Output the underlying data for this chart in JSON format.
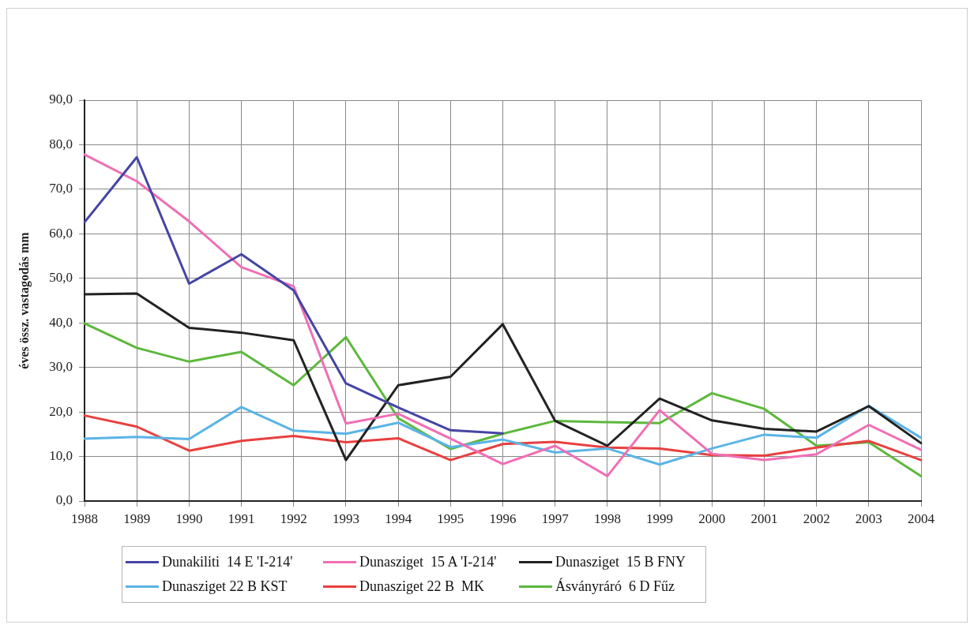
{
  "chart_data": {
    "type": "line",
    "ylabel": "éves össz. vastagodás mm",
    "categories": [
      "1988",
      "1989",
      "1990",
      "1991",
      "1992",
      "1993",
      "1994",
      "1995",
      "1996",
      "1997",
      "1998",
      "1999",
      "2000",
      "2001",
      "2002",
      "2003",
      "2004"
    ],
    "series": [
      {
        "name": "Dunakiliti  14 E 'I-214'",
        "color": "#4545a5",
        "values": [
          62.6,
          77.2,
          48.8,
          55.4,
          47.3,
          26.4,
          21.0,
          15.9,
          15.2,
          null,
          null,
          null,
          null,
          null,
          null,
          null,
          null
        ]
      },
      {
        "name": "Dunasziget  15 A 'I-214'",
        "color": "#f06eb4",
        "values": [
          77.8,
          71.8,
          62.8,
          52.5,
          48.2,
          17.4,
          19.6,
          14.0,
          8.3,
          12.4,
          5.6,
          20.4,
          10.6,
          9.2,
          10.5,
          17.1,
          11.5
        ]
      },
      {
        "name": "Dunasziget  15 B FNY",
        "color": "#222222",
        "values": [
          46.4,
          46.6,
          38.9,
          37.8,
          36.1,
          9.2,
          26.0,
          27.9,
          39.7,
          18.0,
          12.4,
          23.0,
          18.1,
          16.2,
          15.6,
          21.3,
          13.0
        ]
      },
      {
        "name": "Dunasziget 22 B KST",
        "color": "#5ab4e6",
        "values": [
          14.0,
          14.4,
          13.9,
          21.1,
          15.8,
          15.1,
          17.6,
          12.1,
          13.8,
          10.9,
          11.8,
          8.2,
          11.8,
          14.9,
          14.2,
          21.4,
          14.2
        ]
      },
      {
        "name": "Dunasziget 22 B  MK",
        "color": "#e8403f",
        "values": [
          19.2,
          16.7,
          11.3,
          13.5,
          14.6,
          13.2,
          14.1,
          9.2,
          12.8,
          13.3,
          12.0,
          11.8,
          10.3,
          10.2,
          12.0,
          13.5,
          9.2
        ]
      },
      {
        "name": "Ásványráró  6 D Fűz",
        "color": "#5cb83c",
        "values": [
          39.9,
          34.4,
          31.3,
          33.5,
          26.0,
          36.8,
          18.6,
          11.7,
          15.1,
          18.0,
          17.7,
          17.5,
          24.2,
          20.7,
          12.4,
          13.2,
          5.6
        ]
      }
    ],
    "ylim": [
      0,
      90
    ],
    "yticks": [
      {
        "value": 0,
        "label": "0,0"
      },
      {
        "value": 10,
        "label": "10,0"
      },
      {
        "value": 20,
        "label": "20,0"
      },
      {
        "value": 30,
        "label": "30,0"
      },
      {
        "value": 40,
        "label": "40,0"
      },
      {
        "value": 50,
        "label": "50,0"
      },
      {
        "value": 60,
        "label": "60,0"
      },
      {
        "value": 70,
        "label": "70,0"
      },
      {
        "value": 80,
        "label": "80,0"
      },
      {
        "value": 90,
        "label": "90,0"
      }
    ],
    "grid": true,
    "legend": "bottom",
    "marker": "none",
    "line_style": "solid"
  }
}
